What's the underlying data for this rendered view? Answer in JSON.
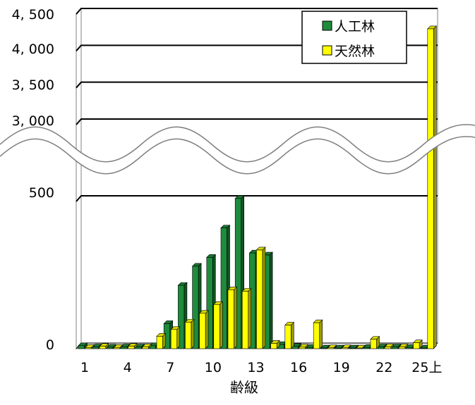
{
  "chart_data": {
    "type": "bar",
    "xlabel": "齢級",
    "ylabel": "",
    "y_broken_axis": true,
    "ylim_lower": [
      0,
      600
    ],
    "ylim_upper": [
      3000,
      4500
    ],
    "ytick_labels": [
      "0",
      "500",
      "3, 000",
      "3, 500",
      "4, 000",
      "4, 500"
    ],
    "xtick_labels": [
      "1",
      "4",
      "7",
      "10",
      "13",
      "16",
      "19",
      "22",
      "25上"
    ],
    "categories": [
      "1",
      "2",
      "3",
      "4",
      "5",
      "6",
      "7",
      "8",
      "9",
      "10",
      "11",
      "12",
      "13",
      "14",
      "15",
      "16",
      "17",
      "18",
      "19",
      "20",
      "21",
      "22",
      "23",
      "24",
      "25上"
    ],
    "series": [
      {
        "name": "人工林",
        "color": "#1e8c3c",
        "values": [
          10,
          6,
          5,
          6,
          6,
          10,
          85,
          215,
          280,
          310,
          410,
          510,
          325,
          318,
          14,
          8,
          4,
          2,
          2,
          2,
          4,
          6,
          6,
          4,
          2
        ]
      },
      {
        "name": "天然林",
        "color": "#ffff00",
        "values": [
          4,
          8,
          4,
          8,
          6,
          42,
          65,
          90,
          120,
          150,
          200,
          195,
          335,
          18,
          80,
          5,
          88,
          3,
          3,
          2,
          32,
          6,
          6,
          20,
          4300
        ]
      }
    ],
    "legend_position": "top-right",
    "grid": true
  }
}
